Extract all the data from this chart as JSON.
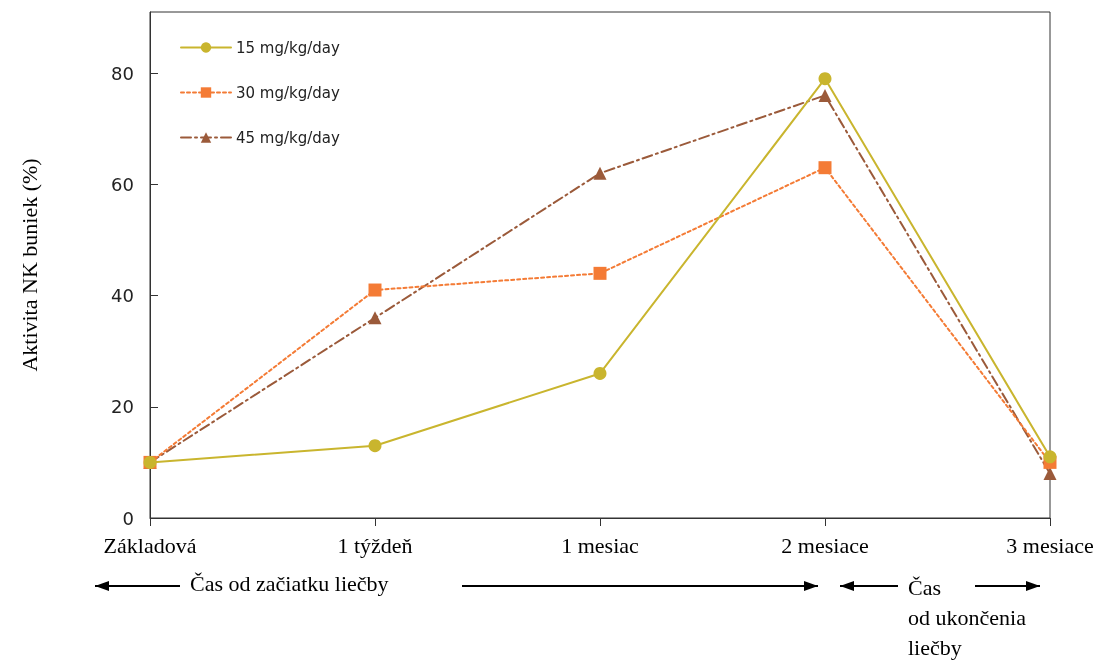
{
  "chart_data": {
    "type": "line",
    "ylabel": "Aktivita NK buniek (%)",
    "categories": [
      "Základová",
      "1 týždeň",
      "1 mesiac",
      "2 mesiace",
      "3 mesiace"
    ],
    "series": [
      {
        "name": "15 mg/kg/day",
        "color": "#c9b52e",
        "marker": "circle",
        "line_style": "solid",
        "values": [
          10,
          13,
          26,
          79,
          11
        ]
      },
      {
        "name": "30 mg/kg/day",
        "color": "#f47b35",
        "marker": "square",
        "line_style": "dotted",
        "values": [
          10,
          41,
          44,
          63,
          10
        ]
      },
      {
        "name": "45 mg/kg/day",
        "color": "#9b5a3a",
        "marker": "triangle",
        "line_style": "dashed",
        "values": [
          10,
          36,
          62,
          76,
          8
        ]
      }
    ],
    "ylim": [
      0,
      91
    ],
    "yticks": [
      0,
      20,
      40,
      60,
      80
    ],
    "grid": false,
    "legend": "top left",
    "annotations": [
      "Čas od začiatku liečby",
      "Čas\nod ukončenia\nliečby"
    ]
  }
}
